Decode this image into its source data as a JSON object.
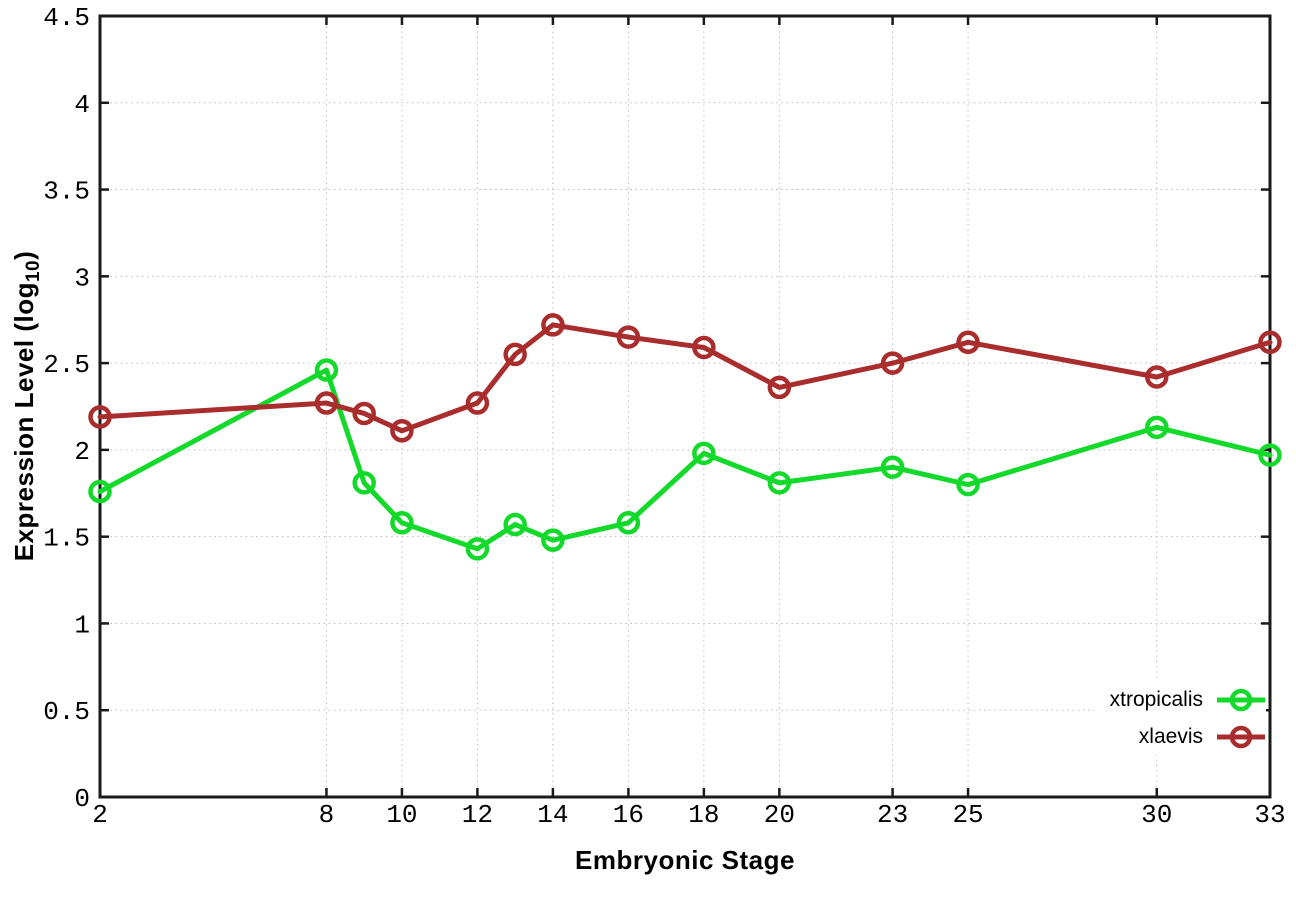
{
  "figure": {
    "background": "#ffffff",
    "xlabel": "Embryonic Stage",
    "ylabel_prefix": "Expression Level (log",
    "ylabel_subscript": "10",
    "ylabel_suffix": ")"
  },
  "chart_data": {
    "type": "line",
    "title": "",
    "xlabel": "Embryonic Stage",
    "ylabel": "Expression Level (log10)",
    "x": [
      2,
      8,
      9,
      10,
      12,
      13,
      14,
      16,
      18,
      20,
      23,
      25,
      30,
      33
    ],
    "series": [
      {
        "name": "xtropicalis",
        "color": "#13d92b",
        "marker": "open-circle",
        "values": [
          1.76,
          2.46,
          1.81,
          1.58,
          1.43,
          1.57,
          1.48,
          1.58,
          1.98,
          1.81,
          1.9,
          1.8,
          2.13,
          1.97
        ]
      },
      {
        "name": "xlaevis",
        "color": "#a92d2d",
        "marker": "open-circle",
        "values": [
          2.19,
          2.27,
          2.21,
          2.11,
          2.27,
          2.55,
          2.72,
          2.65,
          2.59,
          2.36,
          2.5,
          2.62,
          2.42,
          2.62
        ]
      }
    ],
    "xlim": [
      2,
      33
    ],
    "ylim": [
      0,
      4.5
    ],
    "xtick_values": [
      2,
      8,
      10,
      12,
      14,
      16,
      18,
      20,
      23,
      25,
      30,
      33
    ],
    "xtick_labels": [
      "2",
      "8",
      "10",
      "12",
      "14",
      "16",
      "18",
      "20",
      "23",
      "25",
      "30",
      "33"
    ],
    "ytick_values": [
      0,
      0.5,
      1,
      1.5,
      2,
      2.5,
      3,
      3.5,
      4,
      4.5
    ],
    "ytick_labels": [
      "0",
      "0.5",
      "1",
      "1.5",
      "2",
      "2.5",
      "3",
      "3.5",
      "4",
      "4.5"
    ],
    "grid": true,
    "grid_style": "dotted",
    "border_box": true,
    "legend_position": "inside-bottom-right"
  },
  "colors": {
    "axis": "#1a1a1a",
    "grid": "#bfbfbf",
    "text": "#000000"
  }
}
